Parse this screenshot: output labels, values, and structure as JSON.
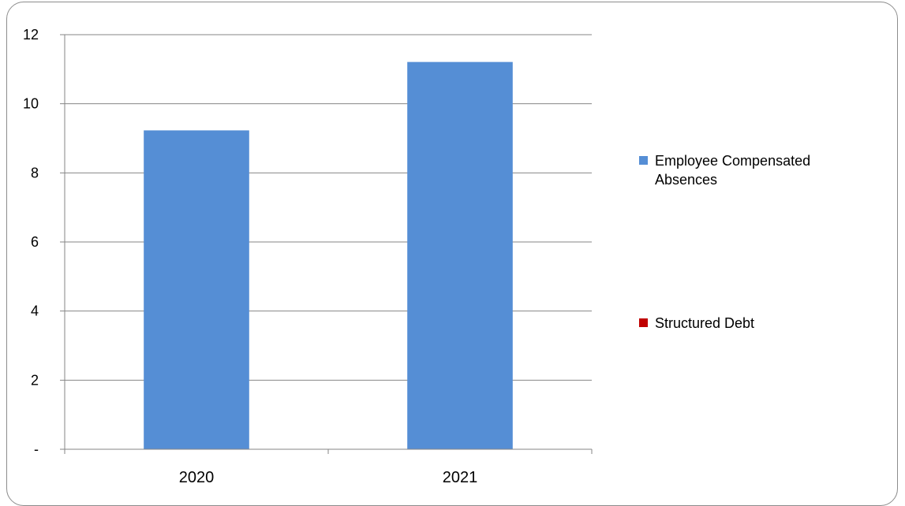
{
  "chart_data": {
    "type": "bar",
    "categories": [
      "2020",
      "2021"
    ],
    "series": [
      {
        "name": "Employee Compensated Absences",
        "values": [
          9.23,
          11.21
        ],
        "color": "#558ED5"
      },
      {
        "name": "Structured Debt",
        "values": [
          0,
          0
        ],
        "color": "#C00000"
      }
    ],
    "y_ticks": [
      "-",
      "2",
      "4",
      "6",
      "8",
      "10",
      "12"
    ],
    "ylim": [
      0,
      12
    ],
    "grid": "horizontal",
    "legend_position": "right",
    "xlabel": "",
    "ylabel": "",
    "title": ""
  },
  "legend": {
    "items": [
      {
        "label": "Employee Compensated Absences",
        "color": "#558ED5"
      },
      {
        "label": "Structured Debt",
        "color": "#C00000"
      }
    ]
  }
}
